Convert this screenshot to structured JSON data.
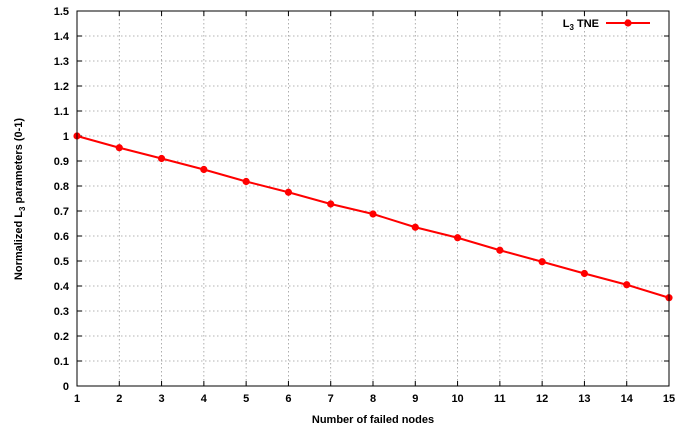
{
  "chart_data": {
    "type": "line",
    "title": "",
    "xlabel": "Number of failed nodes",
    "ylabel": {
      "prefix": "Normalized L",
      "sub": "3",
      "suffix": " parameters (0-1)"
    },
    "x": [
      1,
      2,
      3,
      4,
      5,
      6,
      7,
      8,
      9,
      10,
      11,
      12,
      13,
      14,
      15
    ],
    "series": [
      {
        "name": {
          "prefix": "L",
          "sub": "3",
          "suffix": " TNE"
        },
        "color": "#ff0000",
        "marker": "circle",
        "values": [
          1.0,
          0.953,
          0.91,
          0.866,
          0.818,
          0.775,
          0.728,
          0.688,
          0.635,
          0.593,
          0.543,
          0.497,
          0.45,
          0.405,
          0.353
        ]
      }
    ],
    "xlim": [
      1,
      15
    ],
    "ylim": [
      0,
      1.5
    ],
    "xticks": [
      "1",
      "2",
      "3",
      "4",
      "5",
      "6",
      "7",
      "8",
      "9",
      "10",
      "11",
      "12",
      "13",
      "14",
      "15"
    ],
    "yticks": [
      "0",
      "0.1",
      "0.2",
      "0.3",
      "0.4",
      "0.5",
      "0.6",
      "0.7",
      "0.8",
      "0.9",
      "1",
      "1.1",
      "1.2",
      "1.3",
      "1.4",
      "1.5"
    ],
    "grid": true,
    "legend_position": "top-right"
  }
}
